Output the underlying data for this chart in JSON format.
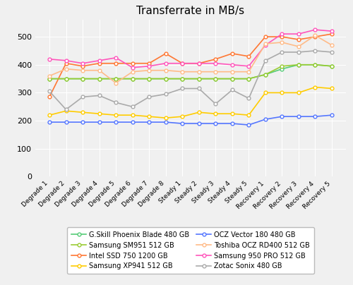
{
  "title": "Transferrate in MB/s",
  "x_labels": [
    "Degrade 1",
    "Degrade 2",
    "Degrade 3",
    "Degrade 4",
    "Degrade 5",
    "Degrade 6",
    "Degrade 7",
    "Degrade 8",
    "Steady 1",
    "Steady 2",
    "Steady 3",
    "Steady 4",
    "Steady 5",
    "Recovery 1",
    "Recovery 2",
    "Recovery 3",
    "Recovery 4",
    "Recovery 5"
  ],
  "series": [
    {
      "label": "G.Skill Phoenix Blade 480 GB",
      "color": "#55cc77",
      "marker": "o",
      "values": [
        350,
        350,
        350,
        350,
        350,
        350,
        350,
        350,
        350,
        350,
        350,
        350,
        350,
        365,
        385,
        400,
        400,
        395
      ]
    },
    {
      "label": "Intel SSD 750 1200 GB",
      "color": "#ff7733",
      "marker": "s",
      "values": [
        285,
        405,
        395,
        405,
        405,
        405,
        405,
        440,
        405,
        405,
        420,
        440,
        430,
        500,
        500,
        490,
        500,
        510
      ]
    },
    {
      "label": "OCZ Vector 180 480 GB",
      "color": "#5577ff",
      "marker": "s",
      "values": [
        195,
        195,
        195,
        195,
        195,
        195,
        195,
        195,
        190,
        190,
        190,
        190,
        185,
        205,
        215,
        215,
        215,
        220
      ]
    },
    {
      "label": "Samsung 950 PRO 512 GB",
      "color": "#ff55bb",
      "marker": "o",
      "values": [
        420,
        415,
        405,
        415,
        425,
        390,
        395,
        405,
        405,
        405,
        405,
        400,
        395,
        470,
        510,
        510,
        525,
        520
      ]
    },
    {
      "label": "Samsung SM951 512 GB",
      "color": "#99cc33",
      "marker": "o",
      "values": [
        350,
        350,
        350,
        350,
        350,
        350,
        350,
        350,
        350,
        350,
        350,
        350,
        350,
        365,
        395,
        400,
        400,
        395
      ]
    },
    {
      "label": "Samsung XP941 512 GB",
      "color": "#ffcc00",
      "marker": "o",
      "values": [
        220,
        235,
        230,
        225,
        220,
        220,
        215,
        210,
        215,
        230,
        225,
        225,
        220,
        300,
        300,
        300,
        320,
        315
      ]
    },
    {
      "label": "Toshiba OCZ RD400 512 GB",
      "color": "#ffbb88",
      "marker": "o",
      "values": [
        360,
        385,
        380,
        380,
        335,
        375,
        380,
        380,
        375,
        375,
        375,
        375,
        375,
        475,
        480,
        465,
        505,
        470
      ]
    },
    {
      "label": "Zotac Sonix 480 GB",
      "color": "#aaaaaa",
      "marker": "o",
      "values": [
        305,
        240,
        285,
        290,
        265,
        250,
        285,
        295,
        315,
        315,
        260,
        310,
        280,
        415,
        445,
        445,
        450,
        445
      ]
    }
  ],
  "ylim": [
    0,
    560
  ],
  "yticks": [
    0,
    100,
    200,
    300,
    400,
    500
  ],
  "figsize": [
    5.0,
    4.04
  ],
  "dpi": 100,
  "bg_color": "#f0f0f0",
  "plot_bg_color": "#f0f0f0",
  "grid_color": "#ffffff",
  "legend_order": [
    0,
    4,
    1,
    5,
    2,
    6,
    3,
    7
  ],
  "legend_cols": 2
}
